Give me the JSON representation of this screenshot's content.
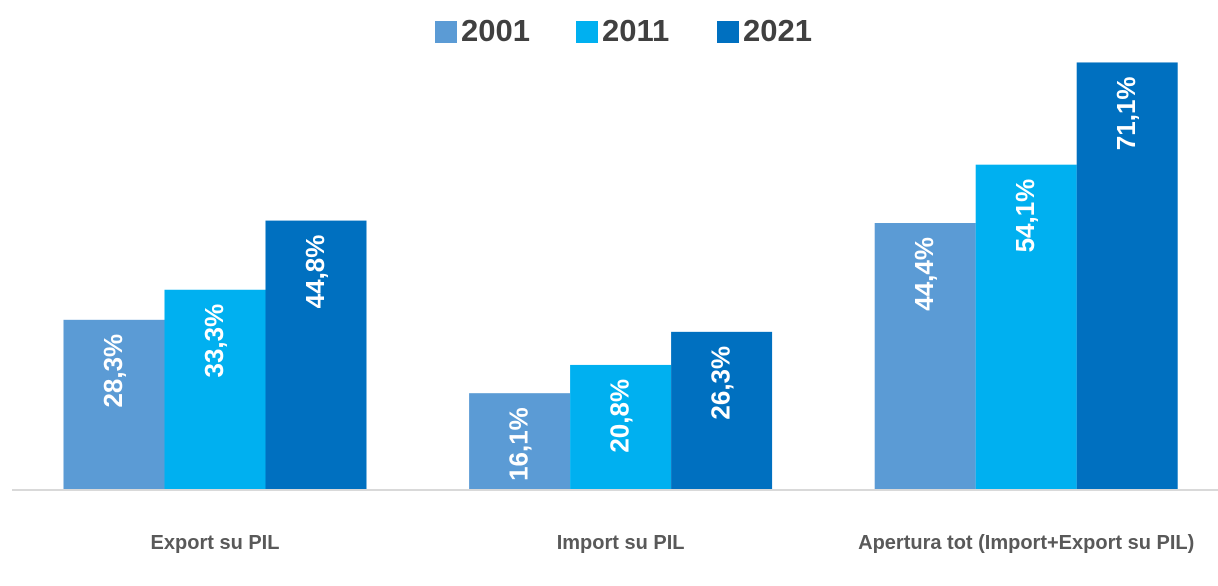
{
  "chart_data": {
    "type": "bar",
    "categories": [
      "Export su PIL",
      "Import su PIL",
      "Apertura tot (Import+Export su PIL)"
    ],
    "series": [
      {
        "name": "2001",
        "color": "#5b9bd5",
        "values": [
          28.3,
          16.1,
          44.4
        ],
        "value_labels": [
          "28,3%",
          "16,1%",
          "44,4%"
        ]
      },
      {
        "name": "2011",
        "color": "#00b0f0",
        "values": [
          33.3,
          20.8,
          54.1
        ],
        "value_labels": [
          "33,3%",
          "20,8%",
          "54,1%"
        ]
      },
      {
        "name": "2021",
        "color": "#0070c0",
        "values": [
          44.8,
          26.3,
          71.1
        ],
        "value_labels": [
          "44,8%",
          "26,3%",
          "71,1%"
        ]
      }
    ],
    "ylim": [
      0,
      75
    ],
    "legend": "top"
  }
}
